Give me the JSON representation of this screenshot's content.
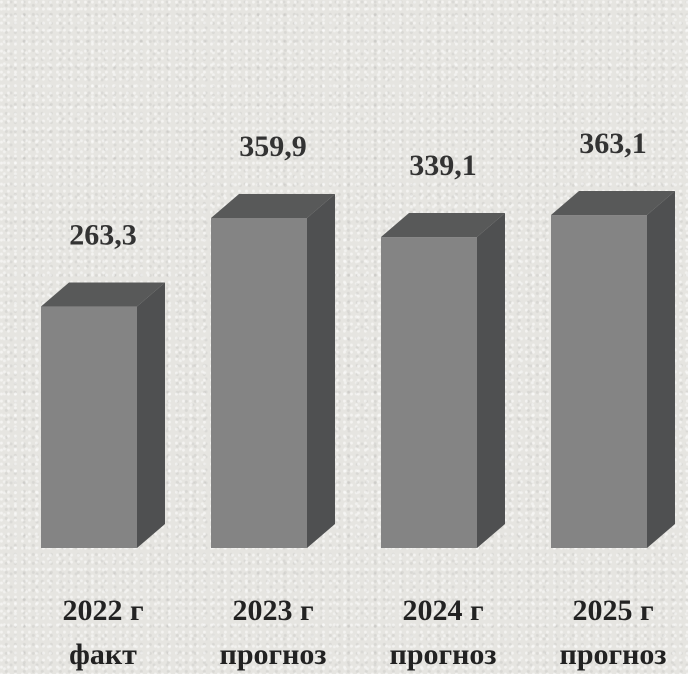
{
  "chart_data": {
    "type": "bar",
    "categories": [
      [
        "2022 г",
        "факт"
      ],
      [
        "2023 г",
        "прогноз"
      ],
      [
        "2024 г",
        "прогноз"
      ],
      [
        "2025 г",
        "прогноз"
      ]
    ],
    "values": [
      263.3,
      359.9,
      339.1,
      363.1
    ],
    "value_labels": [
      "263,3",
      "359,9",
      "339,1",
      "363,1"
    ],
    "colors": {
      "front": "#848484",
      "side": "#4f5051",
      "top": "#585959",
      "label": "#333333"
    },
    "title": "",
    "xlabel": "",
    "ylabel": "",
    "grid": false,
    "legend": "none"
  }
}
